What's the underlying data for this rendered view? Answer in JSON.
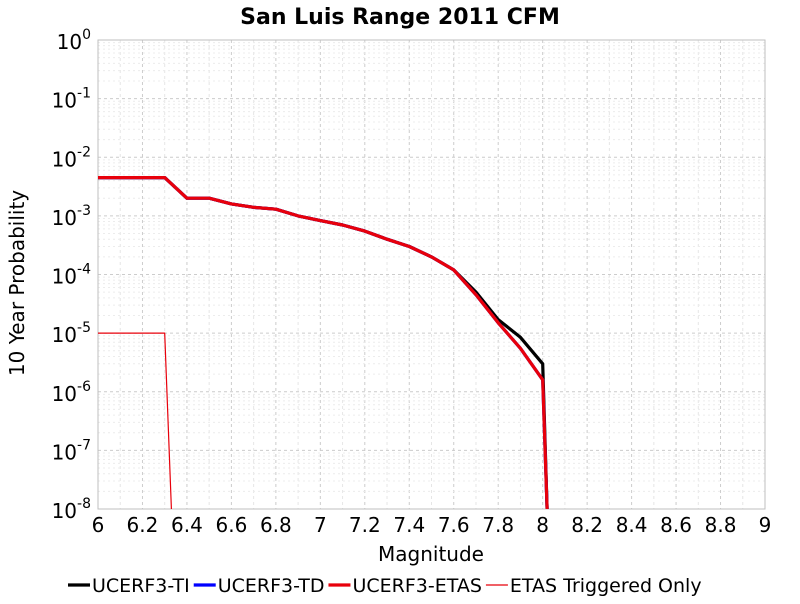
{
  "chart_data": {
    "type": "line",
    "title": "San Luis Range 2011 CFM",
    "xlabel": "Magnitude",
    "ylabel": "10 Year Probability",
    "xlim": [
      6,
      9
    ],
    "ylim_exponents": [
      -8,
      0
    ],
    "y_scale": "log",
    "grid": true,
    "legend_position": "bottom",
    "x_ticks": [
      "6",
      "6.2",
      "6.4",
      "6.6",
      "6.8",
      "7",
      "7.2",
      "7.4",
      "7.6",
      "7.8",
      "8",
      "8.2",
      "8.4",
      "8.6",
      "8.8",
      "9"
    ],
    "y_ticks": [
      {
        "base": "10",
        "exp": "0"
      },
      {
        "base": "10",
        "exp": "-1"
      },
      {
        "base": "10",
        "exp": "-2"
      },
      {
        "base": "10",
        "exp": "-3"
      },
      {
        "base": "10",
        "exp": "-4"
      },
      {
        "base": "10",
        "exp": "-5"
      },
      {
        "base": "10",
        "exp": "-6"
      },
      {
        "base": "10",
        "exp": "-7"
      },
      {
        "base": "10",
        "exp": "-8"
      }
    ],
    "series": [
      {
        "name": "UCERF3-TI",
        "color": "#000000",
        "line": "thick",
        "x": [
          6.0,
          6.1,
          6.2,
          6.3,
          6.4,
          6.5,
          6.6,
          6.7,
          6.8,
          6.9,
          7.0,
          7.1,
          7.2,
          7.3,
          7.4,
          7.5,
          7.6,
          7.7,
          7.8,
          7.9,
          8.0,
          8.02
        ],
        "y": [
          0.0045,
          0.0045,
          0.0045,
          0.0045,
          0.002,
          0.002,
          0.0016,
          0.0014,
          0.0013,
          0.001,
          0.00083,
          0.0007,
          0.00055,
          0.0004,
          0.0003,
          0.0002,
          0.00012,
          5e-05,
          1.7e-05,
          8.5e-06,
          3e-06,
          1e-08
        ]
      },
      {
        "name": "UCERF3-TD",
        "color": "#0000ff",
        "line": "thick",
        "x": [
          6.0,
          6.1,
          6.2,
          6.3,
          6.4,
          6.5,
          6.6,
          6.7,
          6.8,
          6.9,
          7.0,
          7.1,
          7.2,
          7.3,
          7.4,
          7.5,
          7.6,
          7.7,
          7.8,
          7.9,
          8.0,
          8.02
        ],
        "y": [
          0.0045,
          0.0045,
          0.0045,
          0.0045,
          0.002,
          0.002,
          0.0016,
          0.0014,
          0.0013,
          0.001,
          0.00083,
          0.0007,
          0.00055,
          0.0004,
          0.0003,
          0.0002,
          0.00012,
          4.5e-05,
          1.5e-05,
          5.5e-06,
          1.6e-06,
          1e-08
        ]
      },
      {
        "name": "UCERF3-ETAS",
        "color": "#e8000b",
        "line": "thick",
        "x": [
          6.0,
          6.1,
          6.2,
          6.3,
          6.4,
          6.5,
          6.6,
          6.7,
          6.8,
          6.9,
          7.0,
          7.1,
          7.2,
          7.3,
          7.4,
          7.5,
          7.6,
          7.7,
          7.8,
          7.9,
          8.0,
          8.02
        ],
        "y": [
          0.0045,
          0.0045,
          0.0045,
          0.0045,
          0.002,
          0.002,
          0.0016,
          0.0014,
          0.0013,
          0.001,
          0.00083,
          0.0007,
          0.00055,
          0.0004,
          0.0003,
          0.0002,
          0.00012,
          4.5e-05,
          1.5e-05,
          5.5e-06,
          1.6e-06,
          1e-08
        ]
      },
      {
        "name": "ETAS Triggered Only",
        "color": "#e8000b",
        "line": "thin",
        "x": [
          6.0,
          6.1,
          6.2,
          6.3,
          6.33
        ],
        "y": [
          1e-05,
          1e-05,
          1e-05,
          1e-05,
          1e-08
        ]
      }
    ]
  }
}
